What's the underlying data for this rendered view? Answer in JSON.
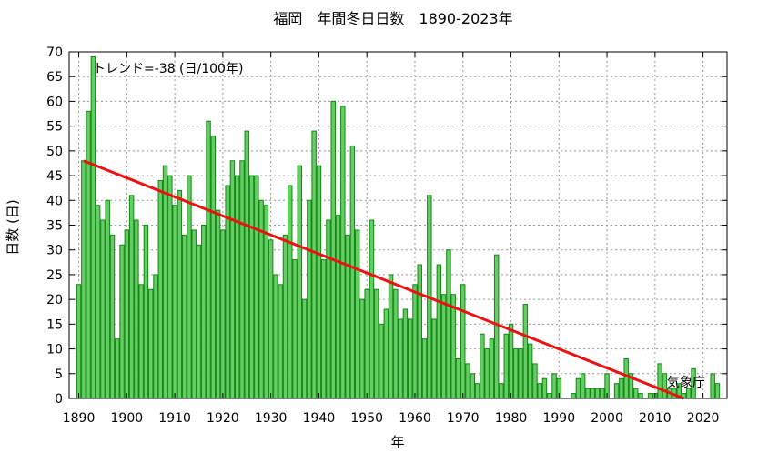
{
  "chart_data": {
    "type": "bar",
    "title": "福岡　年間冬日日数　1890-2023年",
    "xlabel": "年",
    "ylabel": "日数 (日)",
    "trend_label": "トレンド=-38 (日/100年)",
    "source_label": "気象庁",
    "xlim": [
      1888,
      2025
    ],
    "ylim": [
      0,
      70
    ],
    "x_ticks": [
      1890,
      1900,
      1910,
      1920,
      1930,
      1940,
      1950,
      1960,
      1970,
      1980,
      1990,
      2000,
      2010,
      2020
    ],
    "y_ticks": [
      0,
      5,
      10,
      15,
      20,
      25,
      30,
      35,
      40,
      45,
      50,
      55,
      60,
      65,
      70
    ],
    "grid": true,
    "bar_color": "#66cc66",
    "bar_edge_color": "#118811",
    "trend_color": "#ee1111",
    "trend_line": {
      "x": [
        1891,
        2016
      ],
      "y": [
        48,
        0
      ]
    },
    "x": [
      1890,
      1891,
      1892,
      1893,
      1894,
      1895,
      1896,
      1897,
      1898,
      1899,
      1900,
      1901,
      1902,
      1903,
      1904,
      1905,
      1906,
      1907,
      1908,
      1909,
      1910,
      1911,
      1912,
      1913,
      1914,
      1915,
      1916,
      1917,
      1918,
      1919,
      1920,
      1921,
      1922,
      1923,
      1924,
      1925,
      1926,
      1927,
      1928,
      1929,
      1930,
      1931,
      1932,
      1933,
      1934,
      1935,
      1936,
      1937,
      1938,
      1939,
      1940,
      1941,
      1942,
      1943,
      1944,
      1945,
      1946,
      1947,
      1948,
      1949,
      1950,
      1951,
      1952,
      1953,
      1954,
      1955,
      1956,
      1957,
      1958,
      1959,
      1960,
      1961,
      1962,
      1963,
      1964,
      1965,
      1966,
      1967,
      1968,
      1969,
      1970,
      1971,
      1972,
      1973,
      1974,
      1975,
      1976,
      1977,
      1978,
      1979,
      1980,
      1981,
      1982,
      1983,
      1984,
      1985,
      1986,
      1987,
      1988,
      1989,
      1990,
      1991,
      1992,
      1993,
      1994,
      1995,
      1996,
      1997,
      1998,
      1999,
      2000,
      2001,
      2002,
      2003,
      2004,
      2005,
      2006,
      2007,
      2008,
      2009,
      2010,
      2011,
      2012,
      2013,
      2014,
      2015,
      2016,
      2017,
      2018,
      2019,
      2020,
      2021,
      2022,
      2023
    ],
    "values": [
      23,
      48,
      58,
      69,
      39,
      36,
      40,
      33,
      12,
      31,
      34,
      41,
      36,
      23,
      35,
      22,
      25,
      44,
      47,
      45,
      39,
      42,
      33,
      45,
      34,
      31,
      35,
      56,
      53,
      38,
      34,
      43,
      48,
      45,
      48,
      54,
      45,
      45,
      40,
      39,
      32,
      25,
      23,
      33,
      43,
      28,
      47,
      20,
      40,
      54,
      47,
      28,
      36,
      60,
      37,
      59,
      33,
      51,
      34,
      20,
      22,
      36,
      22,
      15,
      18,
      25,
      22,
      16,
      18,
      16,
      23,
      27,
      12,
      41,
      16,
      27,
      21,
      30,
      21,
      8,
      23,
      7,
      5,
      3,
      13,
      10,
      12,
      29,
      3,
      13,
      15,
      10,
      10,
      19,
      11,
      7,
      3,
      4,
      1,
      5,
      4,
      0,
      0,
      1,
      4,
      5,
      2,
      2,
      2,
      2,
      5,
      0,
      3,
      4,
      8,
      5,
      2,
      1,
      0,
      1,
      1,
      7,
      5,
      2,
      2,
      3,
      1,
      2,
      6,
      0,
      0,
      0,
      5,
      3
    ]
  }
}
